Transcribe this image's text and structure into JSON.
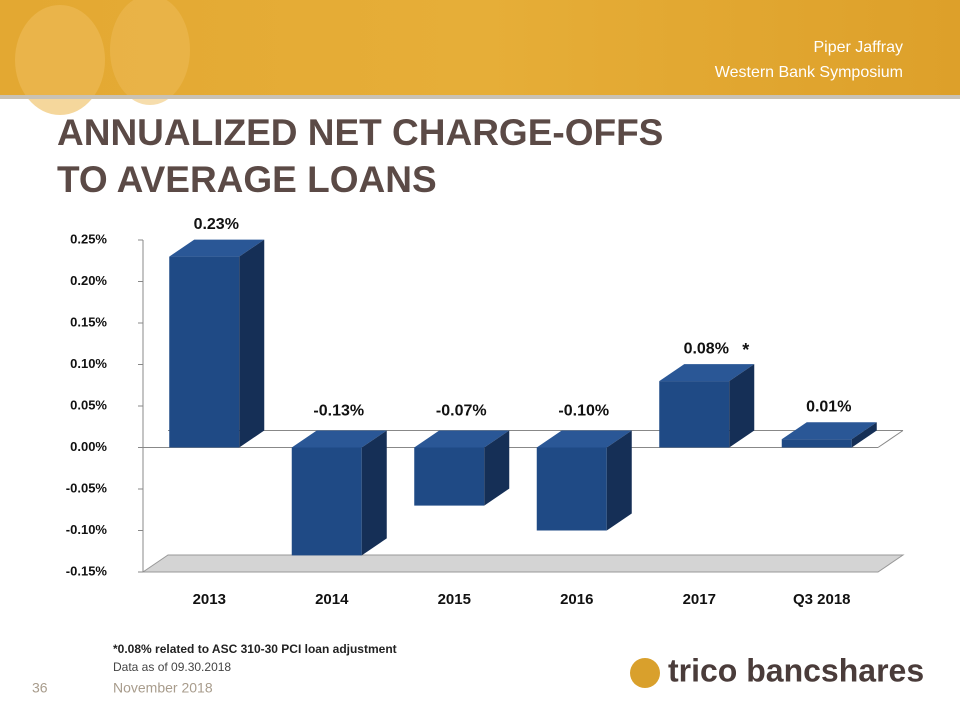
{
  "header": {
    "event": "Piper Jaffray",
    "subtitle": "Western Bank Symposium"
  },
  "chart_data": {
    "type": "bar3d",
    "title": [
      "ANNUALIZED NET CHARGE-OFFS",
      "TO AVERAGE LOANS"
    ],
    "categories": [
      "2013",
      "2014",
      "2015",
      "2016",
      "2017",
      "Q3 2018"
    ],
    "values": [
      0.23,
      -0.13,
      -0.07,
      -0.1,
      0.08,
      0.01
    ],
    "value_labels": [
      "0.23%",
      "-0.13%",
      "-0.07%",
      "-0.10%",
      "0.08%",
      "0.01%"
    ],
    "color": "#1f4a85",
    "ylim": [
      -0.15,
      0.25
    ],
    "yticks": [
      {
        "value": 0.25,
        "label": "0.25%"
      },
      {
        "value": 0.2,
        "label": "0.20%"
      },
      {
        "value": 0.15,
        "label": "0.15%"
      },
      {
        "value": 0.1,
        "label": "0.10%"
      },
      {
        "value": 0.05,
        "label": "0.05%"
      },
      {
        "value": 0.0,
        "label": "0.00%"
      },
      {
        "value": -0.05,
        "label": "-0.05%"
      },
      {
        "value": -0.1,
        "label": "-0.10%"
      },
      {
        "value": -0.15,
        "label": "-0.15%"
      }
    ],
    "annotation": "*",
    "footnote": "*0.08% related to ASC 310-30 PCI loan adjustment"
  },
  "footer": {
    "data_note": "Data as of 09.30.2018",
    "page": "36",
    "date": "November 2018",
    "logo": "trico bancshares"
  }
}
